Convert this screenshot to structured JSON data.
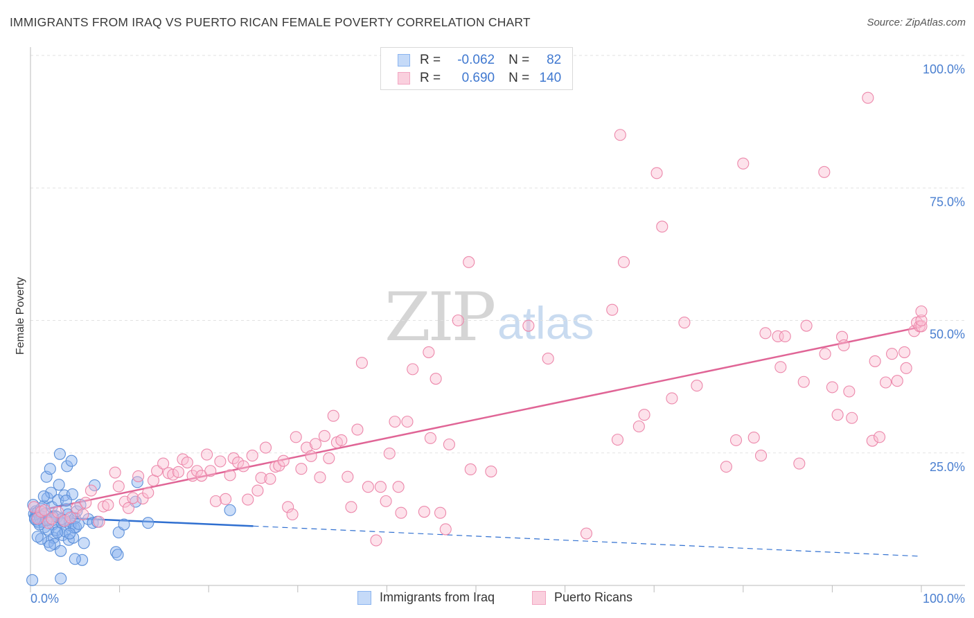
{
  "title": "IMMIGRANTS FROM IRAQ VS PUERTO RICAN FEMALE POVERTY CORRELATION CHART",
  "source": "Source: ZipAtlas.com",
  "watermark": {
    "zip": "ZIP",
    "atlas": "atlas"
  },
  "legend": {
    "series": [
      {
        "r_label": "R =",
        "r_value": "-0.062",
        "n_label": "N =",
        "n_value": "82",
        "color": "#8ab4f0",
        "fill": "#c5daf8"
      },
      {
        "r_label": "R =",
        "r_value": "0.690",
        "n_label": "N =",
        "n_value": "140",
        "color": "#f2a6c2",
        "fill": "#fad0de"
      }
    ]
  },
  "bottom_legend": [
    {
      "label": "Immigrants from Iraq",
      "color": "#8ab4f0",
      "fill": "#c5daf8"
    },
    {
      "label": "Puerto Ricans",
      "color": "#f2a6c2",
      "fill": "#fad0de"
    }
  ],
  "chart_data": {
    "type": "scatter",
    "title": "IMMIGRANTS FROM IRAQ VS PUERTO RICAN FEMALE POVERTY CORRELATION CHART",
    "xlabel": "",
    "ylabel": "Female Poverty",
    "xlim": [
      0,
      100
    ],
    "ylim": [
      0,
      100
    ],
    "x_tick_labels": [
      "0.0%",
      "100.0%"
    ],
    "y_ticks": [
      25,
      50,
      75,
      100
    ],
    "y_tick_labels": [
      "25.0%",
      "50.0%",
      "75.0%",
      "100.0%"
    ],
    "grid": true,
    "series": [
      {
        "name": "Immigrants from Iraq",
        "color": "#5b8fd9",
        "fill": "rgba(139,180,240,0.45)",
        "trend": {
          "x0": 0,
          "y0": 13.0,
          "x1": 25,
          "y1": 11.2,
          "dash_to": 100,
          "dash_y": 5.5,
          "color": "#2f6fd0"
        },
        "points": [
          [
            0.3,
            15.2
          ],
          [
            0.4,
            13.5
          ],
          [
            0.5,
            12.8
          ],
          [
            0.6,
            14.0
          ],
          [
            0.7,
            12.2
          ],
          [
            0.8,
            13.8
          ],
          [
            0.9,
            11.9
          ],
          [
            1.0,
            13.2
          ],
          [
            1.1,
            12.6
          ],
          [
            1.2,
            14.5
          ],
          [
            1.3,
            13.0
          ],
          [
            1.4,
            12.0
          ],
          [
            1.5,
            15.0
          ],
          [
            1.6,
            11.0
          ],
          [
            1.7,
            13.6
          ],
          [
            1.8,
            20.5
          ],
          [
            1.9,
            16.5
          ],
          [
            2.0,
            8.2
          ],
          [
            2.1,
            12.4
          ],
          [
            2.2,
            22.0
          ],
          [
            2.3,
            17.5
          ],
          [
            2.4,
            14.8
          ],
          [
            2.5,
            11.5
          ],
          [
            2.6,
            9.0
          ],
          [
            2.7,
            7.8
          ],
          [
            2.8,
            13.1
          ],
          [
            2.9,
            10.4
          ],
          [
            3.0,
            12.9
          ],
          [
            3.1,
            16.1
          ],
          [
            3.2,
            19.0
          ],
          [
            3.3,
            24.8
          ],
          [
            3.4,
            6.5
          ],
          [
            3.5,
            11.8
          ],
          [
            3.6,
            9.5
          ],
          [
            3.7,
            12.2
          ],
          [
            3.8,
            17.0
          ],
          [
            3.9,
            10.2
          ],
          [
            4.0,
            14.4
          ],
          [
            4.1,
            22.5
          ],
          [
            4.2,
            13.4
          ],
          [
            4.3,
            8.6
          ],
          [
            4.4,
            12.1
          ],
          [
            4.5,
            11.3
          ],
          [
            4.6,
            23.5
          ],
          [
            4.7,
            17.2
          ],
          [
            4.8,
            9.0
          ],
          [
            4.9,
            10.9
          ],
          [
            5.0,
            12.7
          ],
          [
            5.1,
            11.0
          ],
          [
            5.2,
            14.0
          ],
          [
            5.4,
            11.6
          ],
          [
            5.6,
            15.2
          ],
          [
            5.8,
            4.8
          ],
          [
            6.0,
            8.0
          ],
          [
            6.5,
            12.5
          ],
          [
            7.0,
            11.8
          ],
          [
            7.2,
            18.9
          ],
          [
            7.5,
            12.0
          ],
          [
            9.6,
            6.3
          ],
          [
            9.8,
            5.8
          ],
          [
            9.9,
            10.0
          ],
          [
            10.5,
            11.5
          ],
          [
            11.8,
            15.8
          ],
          [
            12.0,
            19.5
          ],
          [
            13.2,
            11.8
          ],
          [
            22.4,
            14.2
          ],
          [
            0.2,
            1.0
          ],
          [
            3.4,
            1.3
          ],
          [
            1.2,
            8.8
          ],
          [
            2.0,
            10.5
          ],
          [
            0.8,
            9.2
          ],
          [
            1.5,
            16.8
          ],
          [
            2.2,
            7.5
          ],
          [
            3.0,
            10.0
          ],
          [
            4.0,
            16.0
          ],
          [
            5.0,
            5.0
          ],
          [
            1.0,
            11.5
          ],
          [
            2.5,
            13.0
          ],
          [
            3.5,
            12.5
          ],
          [
            0.5,
            12.5
          ],
          [
            1.8,
            12.3
          ],
          [
            4.4,
            9.8
          ]
        ]
      },
      {
        "name": "Puerto Ricans",
        "color": "#ec87aa",
        "fill": "rgba(250,190,210,0.45)",
        "trend": {
          "x0": 0,
          "y0": 13.8,
          "x1": 100,
          "y1": 48.8,
          "color": "#e06596"
        },
        "points": [
          [
            0.4,
            14.8
          ],
          [
            0.8,
            12.6
          ],
          [
            1.2,
            13.9
          ],
          [
            1.6,
            14.2
          ],
          [
            2.0,
            11.8
          ],
          [
            2.4,
            12.6
          ],
          [
            3.1,
            13.8
          ],
          [
            3.8,
            12.2
          ],
          [
            4.5,
            12.8
          ],
          [
            5.2,
            14.6
          ],
          [
            5.9,
            13.4
          ],
          [
            6.2,
            15.6
          ],
          [
            6.8,
            17.9
          ],
          [
            7.7,
            12.0
          ],
          [
            8.2,
            14.9
          ],
          [
            8.7,
            15.2
          ],
          [
            9.5,
            21.3
          ],
          [
            9.9,
            18.7
          ],
          [
            10.6,
            15.8
          ],
          [
            11.0,
            14.6
          ],
          [
            11.5,
            16.5
          ],
          [
            12.1,
            20.6
          ],
          [
            12.6,
            16.4
          ],
          [
            13.2,
            17.5
          ],
          [
            13.8,
            19.8
          ],
          [
            14.2,
            21.6
          ],
          [
            14.9,
            23.0
          ],
          [
            15.5,
            21.2
          ],
          [
            16.0,
            20.9
          ],
          [
            16.6,
            21.4
          ],
          [
            17.1,
            23.8
          ],
          [
            17.6,
            23.2
          ],
          [
            18.2,
            20.7
          ],
          [
            18.7,
            21.6
          ],
          [
            19.2,
            20.7
          ],
          [
            19.8,
            24.7
          ],
          [
            20.2,
            21.6
          ],
          [
            20.8,
            15.9
          ],
          [
            21.3,
            23.4
          ],
          [
            21.9,
            16.3
          ],
          [
            22.4,
            20.8
          ],
          [
            22.8,
            24.0
          ],
          [
            23.3,
            23.2
          ],
          [
            23.9,
            22.5
          ],
          [
            24.4,
            16.2
          ],
          [
            24.9,
            24.5
          ],
          [
            25.5,
            17.9
          ],
          [
            25.9,
            20.3
          ],
          [
            26.4,
            26.0
          ],
          [
            26.9,
            20.1
          ],
          [
            27.5,
            22.4
          ],
          [
            27.9,
            22.6
          ],
          [
            28.4,
            23.5
          ],
          [
            28.9,
            14.8
          ],
          [
            29.4,
            13.4
          ],
          [
            29.8,
            28.0
          ],
          [
            30.4,
            22.0
          ],
          [
            31.0,
            26.0
          ],
          [
            31.5,
            24.4
          ],
          [
            32.0,
            26.7
          ],
          [
            32.5,
            20.4
          ],
          [
            33.0,
            28.2
          ],
          [
            33.5,
            24.0
          ],
          [
            34.0,
            32.0
          ],
          [
            34.4,
            27.0
          ],
          [
            34.9,
            27.4
          ],
          [
            35.6,
            20.5
          ],
          [
            36.0,
            14.8
          ],
          [
            36.7,
            29.4
          ],
          [
            37.2,
            42.0
          ],
          [
            37.9,
            18.6
          ],
          [
            38.8,
            8.5
          ],
          [
            39.3,
            18.6
          ],
          [
            39.9,
            15.9
          ],
          [
            40.3,
            24.9
          ],
          [
            40.9,
            30.9
          ],
          [
            41.3,
            18.6
          ],
          [
            41.6,
            13.7
          ],
          [
            42.3,
            30.9
          ],
          [
            42.9,
            40.8
          ],
          [
            44.2,
            13.9
          ],
          [
            44.7,
            44.0
          ],
          [
            44.9,
            27.8
          ],
          [
            45.5,
            39.0
          ],
          [
            46.0,
            13.7
          ],
          [
            46.6,
            10.6
          ],
          [
            47.0,
            26.6
          ],
          [
            48.0,
            50.0
          ],
          [
            49.2,
            61.0
          ],
          [
            49.4,
            21.9
          ],
          [
            51.7,
            21.5
          ],
          [
            55.9,
            49.0
          ],
          [
            58.1,
            42.8
          ],
          [
            62.4,
            9.8
          ],
          [
            65.3,
            52.0
          ],
          [
            65.9,
            27.5
          ],
          [
            66.2,
            85.0
          ],
          [
            66.6,
            61.0
          ],
          [
            68.3,
            30.0
          ],
          [
            68.9,
            32.2
          ],
          [
            70.3,
            77.8
          ],
          [
            70.9,
            67.7
          ],
          [
            72.0,
            35.3
          ],
          [
            73.4,
            49.6
          ],
          [
            74.8,
            37.7
          ],
          [
            78.1,
            22.4
          ],
          [
            79.2,
            27.4
          ],
          [
            80.0,
            79.6
          ],
          [
            81.2,
            27.9
          ],
          [
            82.0,
            24.5
          ],
          [
            82.5,
            47.6
          ],
          [
            83.9,
            47.0
          ],
          [
            84.2,
            41.2
          ],
          [
            84.7,
            47.0
          ],
          [
            86.3,
            23.0
          ],
          [
            86.8,
            38.4
          ],
          [
            87.1,
            49.0
          ],
          [
            89.1,
            78.0
          ],
          [
            89.2,
            43.7
          ],
          [
            90.0,
            37.4
          ],
          [
            90.6,
            32.2
          ],
          [
            91.1,
            46.9
          ],
          [
            91.3,
            45.3
          ],
          [
            91.9,
            36.6
          ],
          [
            92.2,
            31.6
          ],
          [
            94.0,
            92.0
          ],
          [
            94.5,
            27.3
          ],
          [
            94.8,
            42.3
          ],
          [
            95.3,
            28.0
          ],
          [
            96.0,
            38.3
          ],
          [
            96.7,
            43.7
          ],
          [
            97.3,
            38.6
          ],
          [
            98.1,
            44.0
          ],
          [
            98.3,
            41.0
          ],
          [
            99.2,
            48.0
          ],
          [
            99.5,
            49.6
          ],
          [
            99.8,
            48.9
          ],
          [
            100.0,
            48.9
          ],
          [
            100.0,
            50.0
          ],
          [
            100.0,
            51.7
          ]
        ]
      }
    ]
  }
}
